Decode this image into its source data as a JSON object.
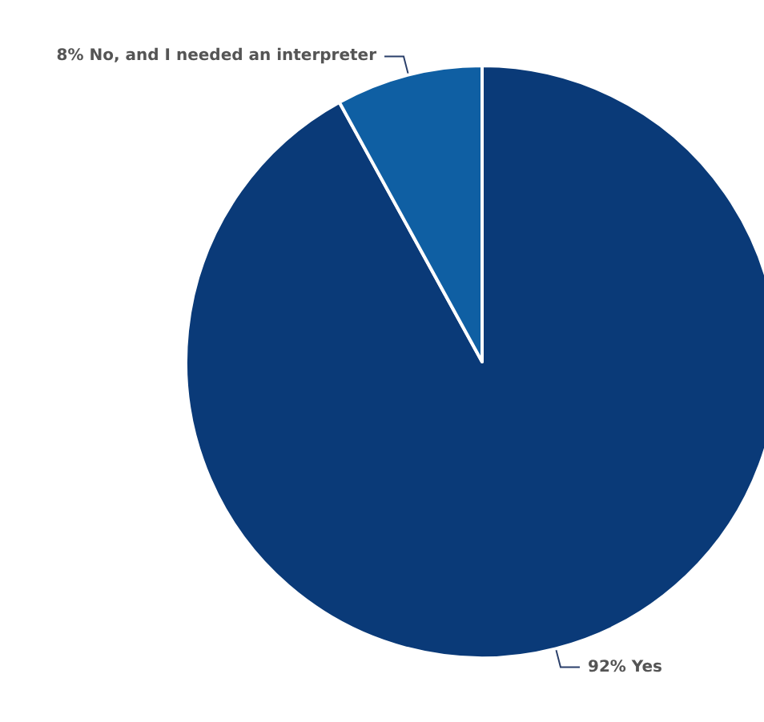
{
  "chart_data": {
    "type": "pie",
    "categories": [
      "Yes",
      "No, and I needed an interpreter"
    ],
    "values": [
      92,
      8
    ],
    "value_labels": [
      "92%",
      "8%"
    ],
    "colors": [
      "#0a3a78",
      "#0f5fa3"
    ],
    "legend": false
  }
}
